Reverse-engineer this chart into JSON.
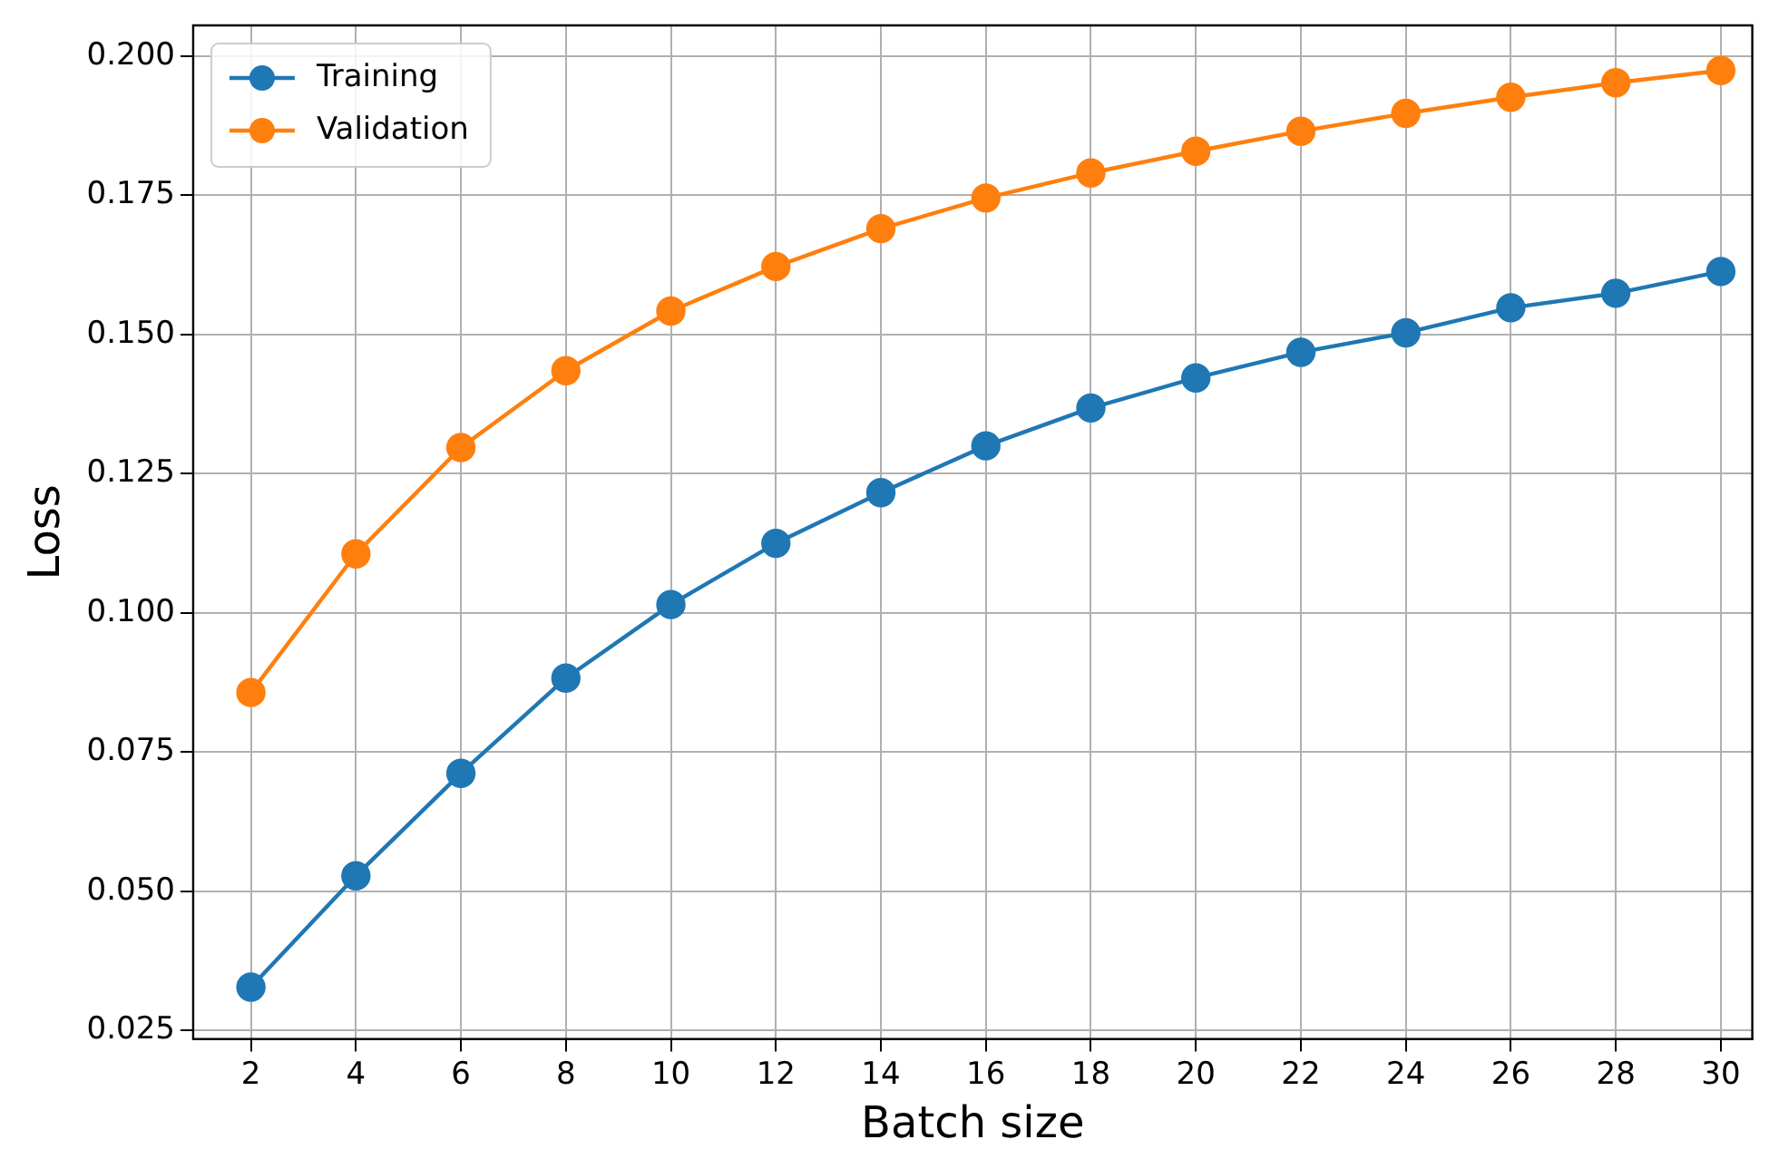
{
  "chart_data": {
    "type": "line",
    "xlabel": "Batch size",
    "ylabel": "Loss",
    "x": [
      2,
      4,
      6,
      8,
      10,
      12,
      14,
      16,
      18,
      20,
      22,
      24,
      26,
      28,
      30
    ],
    "series": [
      {
        "name": "Training",
        "color": "#1f77b4",
        "values": [
          0.0328,
          0.0528,
          0.0712,
          0.0883,
          0.1015,
          0.1125,
          0.1216,
          0.13,
          0.1368,
          0.1422,
          0.1468,
          0.1503,
          0.1548,
          0.1574,
          0.1613
        ]
      },
      {
        "name": "Validation",
        "color": "#ff7f0e",
        "values": [
          0.0857,
          0.1106,
          0.1297,
          0.1435,
          0.1542,
          0.1622,
          0.169,
          0.1745,
          0.179,
          0.1829,
          0.1865,
          0.1897,
          0.1926,
          0.1952,
          0.1974
        ]
      }
    ],
    "xlim": [
      0.9,
      30.6
    ],
    "xticks": [
      2,
      4,
      6,
      8,
      10,
      12,
      14,
      16,
      18,
      20,
      22,
      24,
      26,
      28,
      30
    ],
    "ylim": [
      0.0235,
      0.2055
    ],
    "yticks": [
      {
        "value": 0.025,
        "label": "0.025"
      },
      {
        "value": 0.05,
        "label": "0.050"
      },
      {
        "value": 0.075,
        "label": "0.075"
      },
      {
        "value": 0.1,
        "label": "0.100"
      },
      {
        "value": 0.125,
        "label": "0.125"
      },
      {
        "value": 0.15,
        "label": "0.150"
      },
      {
        "value": 0.175,
        "label": "0.175"
      },
      {
        "value": 0.2,
        "label": "0.200"
      }
    ],
    "grid": true,
    "legend": "top left",
    "marker": "circle",
    "line_style": "solid"
  }
}
